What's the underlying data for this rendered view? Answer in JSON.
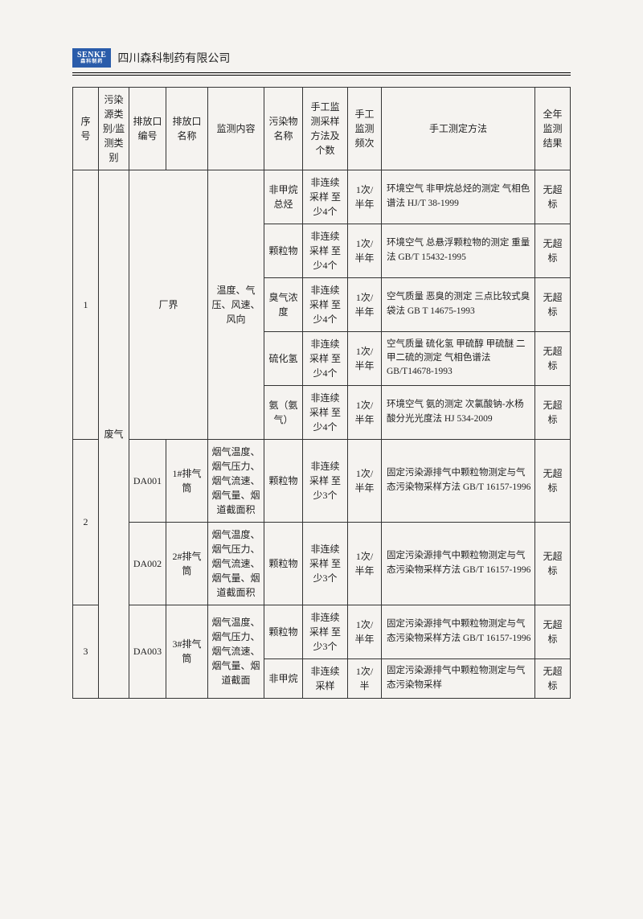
{
  "company_name": "四川森科制药有限公司",
  "logo_text": "SENKE",
  "logo_sub": "森科制药",
  "headers": {
    "seq": "序号",
    "category": "污染源类别/监测类别",
    "port_code": "排放口编号",
    "port_name": "排放口名称",
    "content": "监测内容",
    "pollutant": "污染物名称",
    "sampling": "手工监测采样方法及个数",
    "frequency": "手工监测频次",
    "method": "手工测定方法",
    "result": "全年监测  结果"
  },
  "category_label": "废气",
  "row1": {
    "seq": "1",
    "port_code": "厂界",
    "content": "温度、气压、风速、风向",
    "rows": [
      {
        "pollutant": "非甲烷总烃",
        "sampling": "非连续采样 至少4个",
        "frequency": "1次/半年",
        "method": "环境空气 非甲烷总烃的测定 气相色谱法 HJ/T 38-1999",
        "result": "无超标"
      },
      {
        "pollutant": "颗粒物",
        "sampling": "非连续采样 至少4个",
        "frequency": "1次/半年",
        "method": "环境空气 总悬浮颗粒物的测定 重量法  GB/T 15432-1995",
        "result": "无超标"
      },
      {
        "pollutant": "臭气浓度",
        "sampling": "非连续采样 至少4个",
        "frequency": "1次/半年",
        "method": "空气质量 恶臭的测定 三点比较式臭袋法 GB T 14675-1993",
        "result": "无超标"
      },
      {
        "pollutant": "硫化氢",
        "sampling": "非连续采样 至少4个",
        "frequency": "1次/半年",
        "method": "空气质量 硫化氢 甲硫醇 甲硫醚 二甲二硫的测定 气相色谱法 GB/T14678-1993",
        "result": "无超标"
      },
      {
        "pollutant": "氨（氨气）",
        "sampling": "非连续采样 至少4个",
        "frequency": "1次/半年",
        "method": "环境空气 氨的测定 次氯酸钠-水杨酸分光光度法 HJ 534-2009",
        "result": "无超标"
      }
    ]
  },
  "row2": {
    "seq": "2",
    "ports": [
      {
        "code": "DA001",
        "name": "1#排气筒",
        "content": "烟气温度、烟气压力、烟气流速、烟气量、烟道截面积",
        "pollutant": "颗粒物",
        "sampling": "非连续采样 至少3个",
        "frequency": "1次/半年",
        "method": "固定污染源排气中颗粒物测定与气态污染物采样方法 GB/T 16157-1996",
        "result": "无超标"
      },
      {
        "code": "DA002",
        "name": "2#排气筒",
        "content": "烟气温度、烟气压力、烟气流速、烟气量、烟道截面积",
        "pollutant": "颗粒物",
        "sampling": "非连续采样 至少3个",
        "frequency": "1次/半年",
        "method": "固定污染源排气中颗粒物测定与气态污染物采样方法 GB/T 16157-1996",
        "result": "无超标"
      }
    ]
  },
  "row3": {
    "seq": "3",
    "port": {
      "code": "DA003",
      "name": "3#排气筒",
      "content": "烟气温度、烟气压力、烟气流速、烟气量、烟道截面"
    },
    "rows": [
      {
        "pollutant": "颗粒物",
        "sampling": "非连续采样 至少3个",
        "frequency": "1次/半年",
        "method": "固定污染源排气中颗粒物测定与气态污染物采样方法 GB/T 16157-1996",
        "result": "无超标"
      },
      {
        "pollutant": "非甲烷",
        "sampling": "非连续采样",
        "frequency": "1次/半",
        "method": "固定污染源排气中颗粒物测定与气态污染物采样",
        "result": "无超标"
      }
    ]
  }
}
